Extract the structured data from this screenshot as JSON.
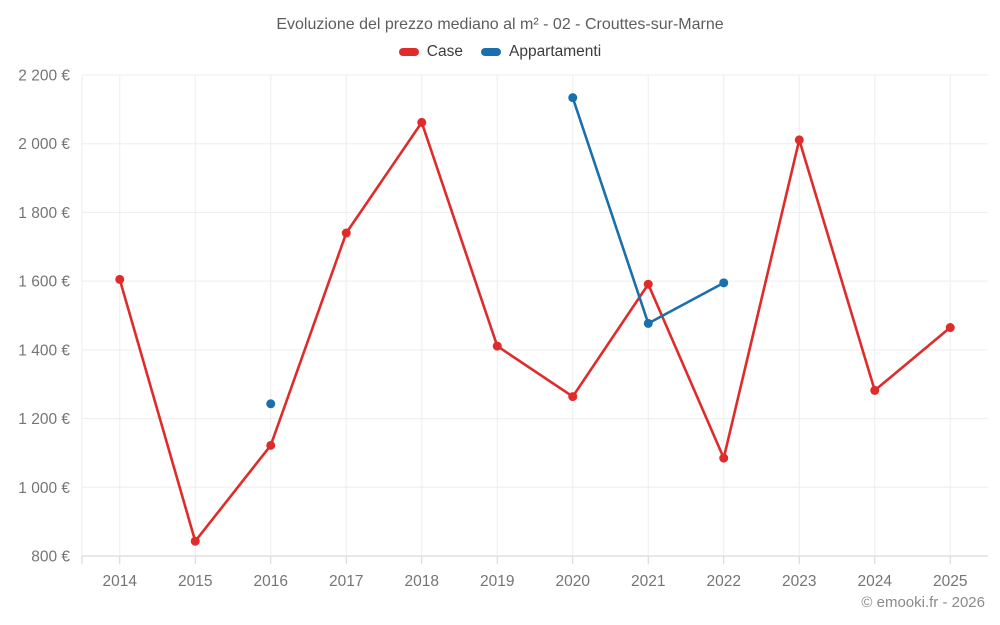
{
  "title": "Evoluzione del prezzo mediano al m² - 02 - Crouttes-sur-Marne",
  "watermark": "© emooki.fr - 2026",
  "colors": {
    "case_red": "#e02b2b",
    "appartamenti_blue": "#1a70ad",
    "grid": "#ededed",
    "axis": "#d2d2d2",
    "tick_text": "#757575",
    "title_text": "#5d5d5d",
    "background": "#ffffff"
  },
  "chart_data": {
    "type": "line",
    "title": "Evoluzione del prezzo mediano al m² - 02 - Crouttes-sur-Marne",
    "xlabel": "",
    "ylabel": "",
    "grid": true,
    "legend_position": "top",
    "x_labels": [
      "2014",
      "2015",
      "2016",
      "2017",
      "2018",
      "2019",
      "2020",
      "2021",
      "2022",
      "2023",
      "2024",
      "2025"
    ],
    "ylim": [
      800,
      2200
    ],
    "y_ticks": [
      {
        "v": 2200,
        "label": "2 200 €"
      },
      {
        "v": 2000,
        "label": "2 000 €"
      },
      {
        "v": 1800,
        "label": "1 800 €"
      },
      {
        "v": 1600,
        "label": "1 600 €"
      },
      {
        "v": 1400,
        "label": "1 400 €"
      },
      {
        "v": 1200,
        "label": "1 200 €"
      },
      {
        "v": 1000,
        "label": "1 000 €"
      },
      {
        "v": 800,
        "label": "800 €"
      }
    ],
    "series": [
      {
        "name": "Case",
        "color": "#e02b2b",
        "values": [
          1605,
          843,
          1122,
          1740,
          2062,
          1411,
          1264,
          1591,
          1085,
          2011,
          1282,
          1465
        ]
      },
      {
        "name": "Appartamenti",
        "color": "#1a70ad",
        "values": [
          null,
          null,
          1243,
          null,
          null,
          null,
          2134,
          1477,
          1595,
          null,
          null,
          null
        ]
      }
    ]
  }
}
